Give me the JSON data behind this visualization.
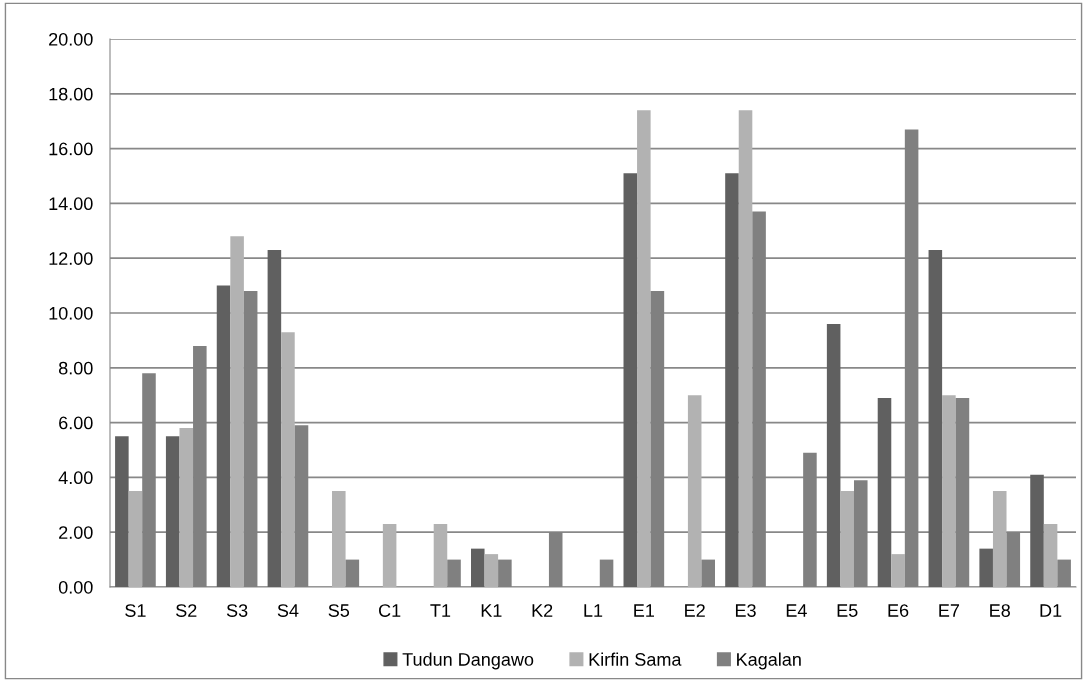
{
  "chart_data": {
    "type": "bar",
    "categories": [
      "S1",
      "S2",
      "S3",
      "S4",
      "S5",
      "C1",
      "T1",
      "K1",
      "K2",
      "L1",
      "E1",
      "E2",
      "E3",
      "E4",
      "E5",
      "E6",
      "E7",
      "E8",
      "D1"
    ],
    "series": [
      {
        "name": "Tudun Dangawo",
        "color": "#606060",
        "values": [
          5.5,
          5.5,
          11.0,
          12.3,
          0,
          0,
          0,
          1.4,
          0,
          0,
          15.1,
          0,
          15.1,
          0,
          9.6,
          6.9,
          12.3,
          1.4,
          4.1
        ]
      },
      {
        "name": "Kirfin Sama",
        "color": "#b2b2b2",
        "values": [
          3.5,
          5.8,
          12.8,
          9.3,
          3.5,
          2.3,
          2.3,
          1.2,
          0,
          0,
          17.4,
          7.0,
          17.4,
          0,
          3.5,
          1.2,
          7.0,
          3.5,
          2.3
        ]
      },
      {
        "name": "Kagalan",
        "color": "#808080",
        "values": [
          7.8,
          8.8,
          10.8,
          5.9,
          1.0,
          0,
          1.0,
          1.0,
          2.0,
          1.0,
          10.8,
          1.0,
          13.7,
          4.9,
          3.9,
          16.7,
          6.9,
          2.0,
          1.0
        ]
      }
    ],
    "ylim": [
      0,
      20
    ],
    "yticks": [
      {
        "value": 0,
        "label": "0.00"
      },
      {
        "value": 2,
        "label": "2.00"
      },
      {
        "value": 4,
        "label": "4.00"
      },
      {
        "value": 6,
        "label": "6.00"
      },
      {
        "value": 8,
        "label": "8.00"
      },
      {
        "value": 10,
        "label": "10.00"
      },
      {
        "value": 12,
        "label": "12.00"
      },
      {
        "value": 14,
        "label": "14.00"
      },
      {
        "value": 16,
        "label": "16.00"
      },
      {
        "value": 18,
        "label": "18.00"
      },
      {
        "value": 20,
        "label": "20.00"
      }
    ],
    "grid": "y",
    "legend": "bottom"
  }
}
